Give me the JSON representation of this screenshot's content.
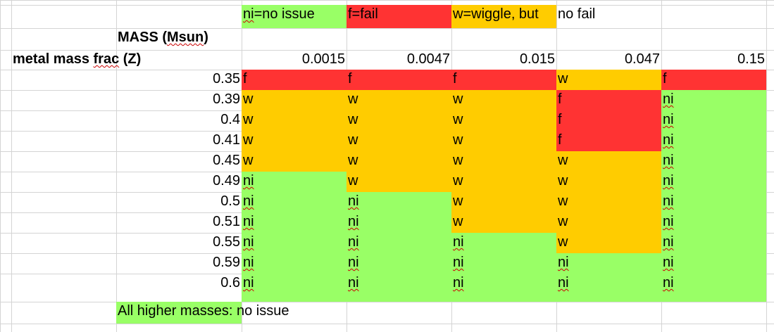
{
  "colors": {
    "no_issue": "#99ff66",
    "fail": "#ff3333",
    "wiggle": "#ffcc00",
    "grid": "#d4d4d4"
  },
  "legend": {
    "no_issue": {
      "abbr": "ni",
      "text": "=no issue"
    },
    "fail": {
      "text": "f=fail"
    },
    "wiggle": {
      "text": "w=wiggle, but"
    },
    "wiggle_cont": {
      "text": "no fail"
    }
  },
  "mass_header": {
    "pre": "MASS (",
    "squig": "Msun",
    "post": ")"
  },
  "z_header": {
    "pre": "metal mass ",
    "squig": "frac",
    "post": " (Z)"
  },
  "z_values": [
    "0.0015",
    "0.0047",
    "0.015",
    "0.047",
    "0.15"
  ],
  "masses": [
    "0.35",
    "0.39",
    "0.4",
    "0.41",
    "0.45",
    "0.49",
    "0.5",
    "0.51",
    "0.55",
    "0.59",
    "0.6"
  ],
  "grid": [
    [
      "f",
      "f",
      "f",
      "w",
      "f"
    ],
    [
      "w",
      "w",
      "w",
      "f",
      "ni"
    ],
    [
      "w",
      "w",
      "w",
      "f",
      "ni"
    ],
    [
      "w",
      "w",
      "w",
      "f",
      "ni"
    ],
    [
      "w",
      "w",
      "w",
      "w",
      "ni"
    ],
    [
      "ni",
      "w",
      "w",
      "w",
      "ni"
    ],
    [
      "ni",
      "ni",
      "w",
      "w",
      "ni"
    ],
    [
      "ni",
      "ni",
      "w",
      "w",
      "ni"
    ],
    [
      "ni",
      "ni",
      "ni",
      "w",
      "ni"
    ],
    [
      "ni",
      "ni",
      "ni",
      "ni",
      "ni"
    ],
    [
      "ni",
      "ni",
      "ni",
      "ni",
      "ni"
    ]
  ],
  "footer": {
    "pre": "All higher mass",
    "post": "es: no issue"
  }
}
